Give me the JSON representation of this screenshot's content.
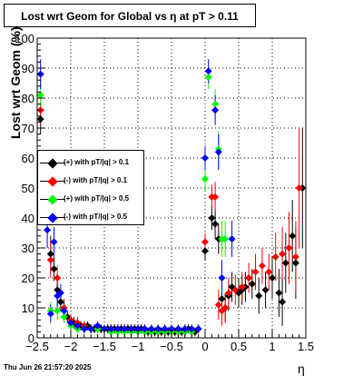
{
  "chart_data": {
    "type": "scatter",
    "title": "Lost wrt Geom for Global vs    η  at pT > 0.11",
    "xlabel": "η",
    "ylabel": "Lost wrt Geom (%)",
    "xlim": [
      -2.5,
      1.5
    ],
    "ylim": [
      0,
      100
    ],
    "x_ticks": [
      "−2.5",
      "−2",
      "−1.5",
      "−1",
      "−0.5",
      "0",
      "0.5",
      "1",
      "1.5"
    ],
    "y_ticks": [
      "0",
      "10",
      "20",
      "30",
      "40",
      "50",
      "60",
      "70",
      "80",
      "90",
      "100"
    ],
    "grid": true,
    "legend_position": "middle-left",
    "series": [
      {
        "name": "(+) with pT/|q| > 0.1",
        "color": "#000000",
        "points": [
          [
            -2.45,
            73,
            5
          ],
          [
            -2.3,
            28,
            6
          ],
          [
            -2.25,
            23,
            4
          ],
          [
            -2.2,
            16,
            4
          ],
          [
            -2.15,
            12,
            3
          ],
          [
            -2.05,
            7,
            2
          ],
          [
            -1.95,
            5,
            2
          ],
          [
            -1.85,
            4,
            1.5
          ],
          [
            -1.75,
            4,
            1.5
          ],
          [
            -1.65,
            3,
            1.5
          ],
          [
            -1.55,
            3,
            1.5
          ],
          [
            -1.45,
            3,
            1.5
          ],
          [
            -1.35,
            3,
            1.5
          ],
          [
            -1.25,
            3,
            1.5
          ],
          [
            -1.15,
            3,
            1.5
          ],
          [
            -1.05,
            3,
            1.5
          ],
          [
            -0.95,
            3,
            1.5
          ],
          [
            -0.85,
            2,
            1.5
          ],
          [
            -0.75,
            2,
            1.5
          ],
          [
            -0.65,
            2,
            1.5
          ],
          [
            -0.55,
            2,
            1.5
          ],
          [
            -0.45,
            2,
            1.5
          ],
          [
            -0.35,
            2,
            1.5
          ],
          [
            -0.25,
            3,
            1.5
          ],
          [
            -0.15,
            2,
            1.5
          ],
          [
            0.0,
            29,
            3
          ],
          [
            0.1,
            40,
            4
          ],
          [
            0.15,
            38,
            5
          ],
          [
            0.2,
            33,
            5
          ],
          [
            0.25,
            13,
            5
          ],
          [
            0.3,
            10,
            5
          ],
          [
            0.35,
            14,
            5
          ],
          [
            0.4,
            17,
            5
          ],
          [
            0.5,
            15,
            5
          ],
          [
            0.55,
            16,
            5
          ],
          [
            0.6,
            17,
            5
          ],
          [
            0.7,
            18,
            5
          ],
          [
            0.8,
            14,
            6
          ],
          [
            0.9,
            16,
            6
          ],
          [
            1.0,
            20,
            7
          ],
          [
            1.1,
            15,
            8
          ],
          [
            1.15,
            12,
            8
          ],
          [
            1.2,
            25,
            10
          ],
          [
            1.3,
            34,
            12
          ],
          [
            1.35,
            25,
            12
          ],
          [
            1.45,
            50,
            20
          ]
        ]
      },
      {
        "name": "(-) with pT/|q| > 0.1",
        "color": "#ff0000",
        "points": [
          [
            -2.45,
            76,
            5
          ],
          [
            -2.3,
            26,
            6
          ],
          [
            -2.2,
            20,
            4
          ],
          [
            -2.1,
            10,
            3
          ],
          [
            -2.0,
            6,
            2
          ],
          [
            -1.9,
            5,
            2
          ],
          [
            -1.8,
            4,
            1.5
          ],
          [
            -1.7,
            3,
            1.5
          ],
          [
            -1.6,
            3,
            1.5
          ],
          [
            -1.5,
            3,
            1.5
          ],
          [
            -1.4,
            3,
            1.5
          ],
          [
            -1.3,
            3,
            1.5
          ],
          [
            -1.2,
            3,
            1.5
          ],
          [
            -1.1,
            3,
            1.5
          ],
          [
            -1.0,
            3,
            1.5
          ],
          [
            -0.9,
            3,
            1.5
          ],
          [
            -0.8,
            2,
            1.5
          ],
          [
            -0.7,
            2,
            1.5
          ],
          [
            -0.6,
            2,
            1.5
          ],
          [
            -0.5,
            2,
            1.5
          ],
          [
            -0.4,
            2,
            1.5
          ],
          [
            -0.3,
            2,
            1.5
          ],
          [
            -0.2,
            2,
            1.5
          ],
          [
            0.0,
            32,
            3
          ],
          [
            0.1,
            47,
            4
          ],
          [
            0.15,
            47,
            5
          ],
          [
            0.2,
            11,
            5
          ],
          [
            0.25,
            9,
            5
          ],
          [
            0.3,
            10,
            5
          ],
          [
            0.35,
            15,
            5
          ],
          [
            0.45,
            16,
            5
          ],
          [
            0.55,
            17,
            5
          ],
          [
            0.65,
            20,
            5
          ],
          [
            0.75,
            22,
            6
          ],
          [
            0.85,
            24,
            6
          ],
          [
            0.95,
            22,
            6
          ],
          [
            1.05,
            27,
            8
          ],
          [
            1.15,
            28,
            9
          ],
          [
            1.25,
            30,
            12
          ],
          [
            1.35,
            27,
            12
          ],
          [
            1.4,
            50,
            20
          ]
        ]
      },
      {
        "name": "(+) with pT/|q| > 0.5",
        "color": "#00ff00",
        "points": [
          [
            -2.45,
            81,
            5
          ],
          [
            -2.3,
            9,
            3
          ],
          [
            -2.2,
            9,
            3
          ],
          [
            -2.1,
            7,
            2
          ],
          [
            -2.0,
            4,
            1.5
          ],
          [
            -1.9,
            3,
            1.5
          ],
          [
            -1.8,
            3,
            1.5
          ],
          [
            -1.7,
            3,
            1.5
          ],
          [
            -1.6,
            3,
            1.5
          ],
          [
            -1.5,
            3,
            1.5
          ],
          [
            -1.4,
            2,
            1.5
          ],
          [
            -1.3,
            2,
            1.5
          ],
          [
            -1.2,
            2,
            1.5
          ],
          [
            -1.1,
            2,
            1.5
          ],
          [
            -1.0,
            2,
            1.5
          ],
          [
            -0.9,
            2,
            1.5
          ],
          [
            -0.8,
            2,
            1.5
          ],
          [
            -0.7,
            2,
            1.5
          ],
          [
            -0.6,
            2,
            1.5
          ],
          [
            -0.5,
            2,
            1.5
          ],
          [
            -0.4,
            2,
            1.5
          ],
          [
            -0.3,
            2,
            1.5
          ],
          [
            -0.2,
            2,
            1.5
          ],
          [
            -0.1,
            3,
            1.5
          ],
          [
            0.0,
            53,
            4
          ],
          [
            0.05,
            87,
            4
          ],
          [
            0.15,
            78,
            5
          ],
          [
            0.2,
            63,
            6
          ],
          [
            0.25,
            33,
            6
          ],
          [
            0.3,
            33,
            6
          ]
        ]
      },
      {
        "name": "(-) with pT/|q| > 0.5",
        "color": "#0000ff",
        "points": [
          [
            -2.45,
            88,
            5
          ],
          [
            -2.35,
            36,
            6
          ],
          [
            -2.3,
            8,
            3
          ],
          [
            -2.25,
            32,
            5
          ],
          [
            -2.2,
            14,
            4
          ],
          [
            -2.15,
            15,
            3
          ],
          [
            -2.1,
            9,
            3
          ],
          [
            -2.0,
            5,
            1.5
          ],
          [
            -1.9,
            4,
            1.5
          ],
          [
            -1.8,
            3,
            1.5
          ],
          [
            -1.7,
            3,
            1.5
          ],
          [
            -1.6,
            4,
            1.5
          ],
          [
            -1.5,
            3,
            1.5
          ],
          [
            -1.4,
            3,
            1.5
          ],
          [
            -1.3,
            3,
            1.5
          ],
          [
            -1.2,
            3,
            1.5
          ],
          [
            -1.1,
            3,
            1.5
          ],
          [
            -1.0,
            3,
            1.5
          ],
          [
            -0.9,
            3,
            1.5
          ],
          [
            -0.8,
            3,
            1.5
          ],
          [
            -0.7,
            3,
            1.5
          ],
          [
            -0.6,
            3,
            1.5
          ],
          [
            -0.5,
            3,
            1.5
          ],
          [
            -0.4,
            3,
            1.5
          ],
          [
            -0.3,
            3,
            1.5
          ],
          [
            -0.2,
            3,
            1.5
          ],
          [
            -0.1,
            3,
            1.5
          ],
          [
            0.0,
            60,
            4
          ],
          [
            0.05,
            89,
            4
          ],
          [
            0.15,
            76,
            5
          ],
          [
            0.2,
            62,
            6
          ],
          [
            0.25,
            20,
            6
          ],
          [
            0.4,
            33,
            6
          ]
        ]
      }
    ]
  },
  "footer": {
    "datestamp": "Thu Jun 26 21:57:20 2025"
  }
}
